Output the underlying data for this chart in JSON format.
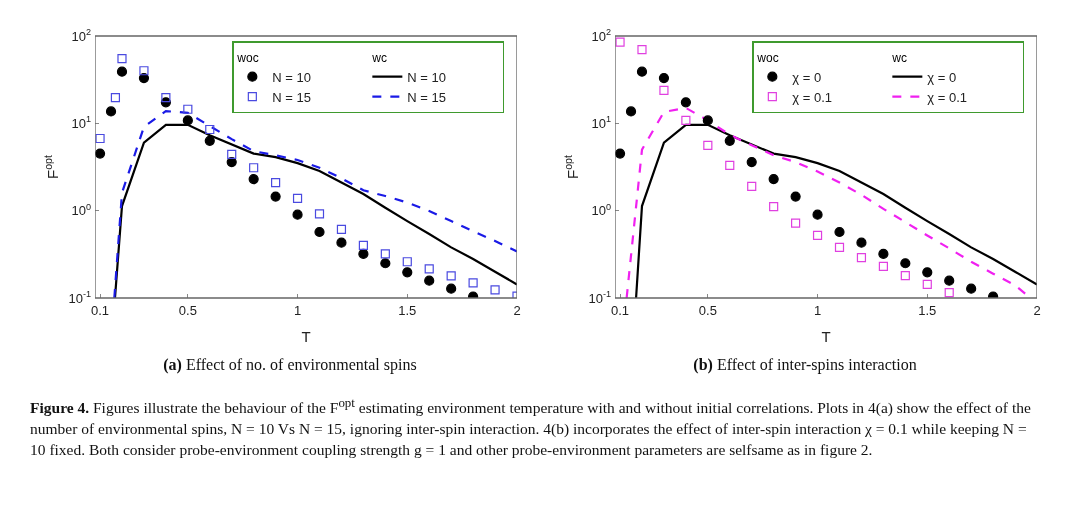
{
  "chart_data": [
    {
      "type": "scatter",
      "title": "(a) Effect of no. of environmental spins",
      "xlabel": "T",
      "ylabel": "F$^{opt}$",
      "log": "y",
      "grid": false,
      "legend": "top right",
      "xlim": [
        0.077,
        2
      ],
      "xticks": [
        0.1,
        0.5,
        1,
        1.5,
        2
      ],
      "ylim": [
        0.1,
        100
      ],
      "yticks": [
        {
          "value": 0.1,
          "label": "10$^{-1}$"
        },
        {
          "value": 1,
          "label": "10$^{0}$"
        },
        {
          "value": 10,
          "label": "10$^{1}$"
        },
        {
          "value": 100,
          "label": "10$^{2}$"
        }
      ],
      "series": [
        {
          "name": "N = 10",
          "marker": "circle",
          "color": "#000000",
          "x": [
            0.1,
            0.15,
            0.2,
            0.3,
            0.4,
            0.5,
            0.6,
            0.7,
            0.8,
            0.9,
            1.0,
            1.1,
            1.2,
            1.3,
            1.4,
            1.5,
            1.6,
            1.7,
            1.8
          ],
          "values": [
            4.5,
            13.7,
            39,
            33,
            17.4,
            10.8,
            6.3,
            3.6,
            2.3,
            1.45,
            0.9,
            0.57,
            0.43,
            0.32,
            0.25,
            0.197,
            0.158,
            0.128,
            0.104
          ]
        },
        {
          "name": "N = 15",
          "marker": "square",
          "color": "#4a4ae0",
          "x": [
            0.1,
            0.17,
            0.2,
            0.3,
            0.4,
            0.5,
            0.6,
            0.7,
            0.8,
            0.9,
            1.0,
            1.1,
            1.2,
            1.3,
            1.4,
            1.5,
            1.6,
            1.7,
            1.8,
            1.9,
            2.0
          ],
          "values": [
            6.7,
            19.7,
            55,
            40,
            19.7,
            14.5,
            8.5,
            4.4,
            3.1,
            2.1,
            1.38,
            0.92,
            0.61,
            0.4,
            0.32,
            0.26,
            0.215,
            0.179,
            0.149,
            0.124,
            0.105
          ]
        },
        {
          "name": "N = 10",
          "type": "line",
          "line_style": "solid",
          "color": "#000000",
          "x": [
            0.168,
            0.2,
            0.3,
            0.4,
            0.5,
            0.6,
            0.8,
            0.9,
            1.0,
            1.1,
            1.2,
            1.3,
            1.4,
            1.5,
            1.6,
            1.7,
            1.8,
            1.9,
            2.0
          ],
          "values": [
            0.1,
            1.13,
            6.0,
            9.6,
            9.6,
            7.3,
            4.5,
            4.1,
            3.5,
            2.85,
            2.1,
            1.55,
            1.08,
            0.76,
            0.54,
            0.38,
            0.28,
            0.2,
            0.143
          ]
        },
        {
          "name": "N = 15",
          "type": "line",
          "line_style": "dashed",
          "color": "#1a1ae6",
          "x": [
            0.165,
            0.2,
            0.3,
            0.4,
            0.5,
            0.6,
            0.7,
            0.8,
            0.9,
            1.0,
            1.1,
            1.2,
            1.3,
            1.4,
            1.5,
            1.6,
            1.7,
            1.8,
            1.9,
            2.0
          ],
          "values": [
            0.1,
            1.6,
            9.1,
            13.8,
            13.2,
            9.3,
            6.6,
            4.8,
            4.3,
            3.8,
            3.1,
            2.35,
            1.71,
            1.47,
            1.24,
            0.99,
            0.76,
            0.58,
            0.45,
            0.34
          ]
        }
      ],
      "annotations": [
        "woc",
        "wc",
        "Figure 4. Figures illustrate the behaviour of the F$^{opt}$ estimating environment temperature with and without initial correlations. Plots in 4(a) show the effect of the number of environmental spins, N = 10 Vs N = 15, ignoring inter-spin interaction. 4(b) incorporates the effect of inter-spin interaction χ = 0.1 while keeping N = 10 fixed. Both consider probe-environment coupling strength g = 1 and other probe-environment parameters are selfsame as in figure 2."
      ]
    },
    {
      "type": "scatter",
      "title": "(b) Effect of inter-spins interaction",
      "xlabel": "T",
      "ylabel": "F$^{opt}$",
      "log": "y",
      "grid": false,
      "legend": "top right",
      "xlim": [
        0.077,
        2
      ],
      "xticks": [
        0.1,
        0.5,
        1,
        1.5,
        2
      ],
      "ylim": [
        0.1,
        100
      ],
      "yticks": [
        {
          "value": 0.1,
          "label": "10$^{-1}$"
        },
        {
          "value": 1,
          "label": "10$^{0}$"
        },
        {
          "value": 10,
          "label": "10$^{1}$"
        },
        {
          "value": 100,
          "label": "10$^{2}$"
        }
      ],
      "series": [
        {
          "name": "χ = 0",
          "marker": "circle",
          "color": "#000000",
          "x": [
            0.1,
            0.15,
            0.2,
            0.3,
            0.4,
            0.5,
            0.6,
            0.7,
            0.8,
            0.9,
            1.0,
            1.1,
            1.2,
            1.3,
            1.4,
            1.5,
            1.6,
            1.7,
            1.8
          ],
          "values": [
            4.5,
            13.7,
            39,
            33,
            17.4,
            10.8,
            6.3,
            3.6,
            2.3,
            1.45,
            0.9,
            0.57,
            0.43,
            0.32,
            0.25,
            0.197,
            0.158,
            0.128,
            0.104
          ]
        },
        {
          "name": "χ = 0.1",
          "marker": "square",
          "color": "#e040e0",
          "x": [
            0.1,
            0.2,
            0.3,
            0.4,
            0.5,
            0.6,
            0.7,
            0.8,
            0.9,
            1.0,
            1.1,
            1.2,
            1.3,
            1.4,
            1.5,
            1.6
          ],
          "values": [
            85,
            70,
            23.9,
            10.8,
            5.6,
            3.3,
            1.9,
            1.11,
            0.72,
            0.52,
            0.38,
            0.29,
            0.23,
            0.18,
            0.143,
            0.115
          ]
        },
        {
          "name": "χ = 0",
          "type": "line",
          "line_style": "solid",
          "color": "#000000",
          "x": [
            0.173,
            0.2,
            0.3,
            0.4,
            0.5,
            0.6,
            0.8,
            0.9,
            1.0,
            1.1,
            1.2,
            1.3,
            1.4,
            1.5,
            1.6,
            1.7,
            1.8,
            1.9,
            2.0
          ],
          "values": [
            0.1,
            1.13,
            6.0,
            9.6,
            9.6,
            7.3,
            4.5,
            4.1,
            3.5,
            2.85,
            2.1,
            1.55,
            1.08,
            0.76,
            0.54,
            0.38,
            0.28,
            0.2,
            0.143
          ]
        },
        {
          "name": "χ = 0.1",
          "type": "line",
          "line_style": "dashed",
          "color": "#f020f0",
          "x": [
            0.13,
            0.2,
            0.3,
            0.4,
            0.5,
            0.6,
            0.7,
            0.8,
            0.9,
            1.0,
            1.1,
            1.2,
            1.3,
            1.4,
            1.5,
            1.6,
            1.7,
            1.8,
            1.9,
            1.97
          ],
          "values": [
            0.1,
            5.0,
            13.5,
            15,
            10.8,
            7.4,
            5.6,
            4.3,
            3.6,
            2.8,
            2.1,
            1.52,
            1.05,
            0.74,
            0.52,
            0.37,
            0.26,
            0.19,
            0.14,
            0.1
          ]
        }
      ],
      "annotations": [
        "woc",
        "wc"
      ]
    }
  ]
}
